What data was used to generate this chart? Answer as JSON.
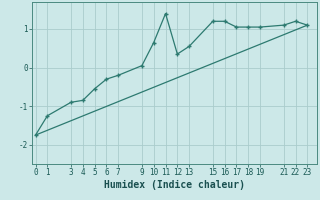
{
  "title": "",
  "xlabel": "Humidex (Indice chaleur)",
  "ylabel": "",
  "background_color": "#cce8e8",
  "grid_color": "#aacccc",
  "line_color": "#2d7a70",
  "curve1_x": [
    0,
    1,
    3,
    4,
    5,
    6,
    7,
    9,
    10,
    11,
    12,
    13,
    15,
    16,
    17,
    18,
    19,
    21,
    22,
    23
  ],
  "curve1_y": [
    -1.75,
    -1.25,
    -0.9,
    -0.85,
    -0.55,
    -0.3,
    -0.2,
    0.05,
    0.65,
    1.4,
    0.35,
    0.55,
    1.2,
    1.2,
    1.05,
    1.05,
    1.05,
    1.1,
    1.2,
    1.1
  ],
  "curve2_x": [
    0,
    23
  ],
  "curve2_y": [
    -1.75,
    1.1
  ],
  "xlim": [
    -0.3,
    23.8
  ],
  "ylim": [
    -2.5,
    1.7
  ],
  "xticks": [
    0,
    1,
    3,
    4,
    5,
    6,
    7,
    9,
    10,
    11,
    12,
    13,
    15,
    16,
    17,
    18,
    19,
    21,
    22,
    23
  ],
  "yticks": [
    -2,
    -1,
    0,
    1
  ],
  "tick_fontsize": 5.5,
  "label_fontsize": 7.0,
  "figwidth": 3.2,
  "figheight": 2.0,
  "dpi": 100
}
